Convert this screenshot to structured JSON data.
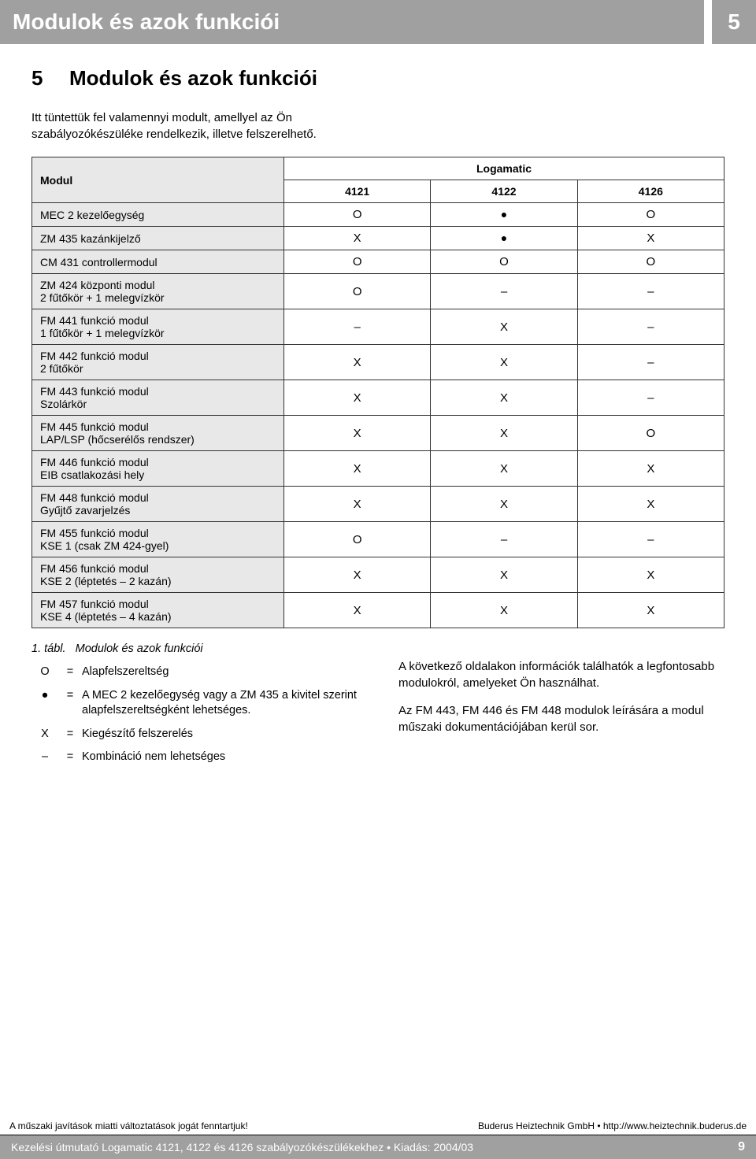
{
  "colors": {
    "bar_bg": "#a0a0a0",
    "bar_fg": "#ffffff",
    "row_shade": "#e8e8e8",
    "border": "#333333",
    "page_bg": "#ffffff",
    "text": "#000000"
  },
  "header": {
    "title": "Modulok és azok funkciói",
    "chapter_number": "5"
  },
  "section": {
    "number": "5",
    "title": "Modulok és azok funkciói"
  },
  "intro": "Itt tüntettük fel valamennyi modult, amellyel az Ön szabályozókészüléke rendelkezik, illetve felszerelhető.",
  "table": {
    "modul_label": "Modul",
    "group_label": "Logamatic",
    "columns": [
      "4121",
      "4122",
      "4126"
    ],
    "col_width_label": 320,
    "col_width_data": 178,
    "fontsize": 14,
    "header_bg": "#e8e8e8",
    "rows": [
      {
        "label": "MEC 2 kezelőegység",
        "cells": [
          "O",
          "●",
          "O"
        ]
      },
      {
        "label": "ZM 435 kazánkijelző",
        "cells": [
          "X",
          "●",
          "X"
        ]
      },
      {
        "label": "CM 431 controllermodul",
        "cells": [
          "O",
          "O",
          "O"
        ]
      },
      {
        "label": "ZM 424 központi modul\n2 fűtőkör + 1 melegvízkör",
        "cells": [
          "O",
          "–",
          "–"
        ]
      },
      {
        "label": "FM 441 funkció modul\n1 fűtőkör + 1 melegvízkör",
        "cells": [
          "–",
          "X",
          "–"
        ]
      },
      {
        "label": "FM 442 funkció modul\n2 fűtőkör",
        "cells": [
          "X",
          "X",
          "–"
        ]
      },
      {
        "label": "FM 443 funkció modul\nSzolárkör",
        "cells": [
          "X",
          "X",
          "–"
        ]
      },
      {
        "label": "FM 445 funkció modul\nLAP/LSP (hőcserélős rendszer)",
        "cells": [
          "X",
          "X",
          "O"
        ]
      },
      {
        "label": "FM 446 funkció modul\nEIB csatlakozási hely",
        "cells": [
          "X",
          "X",
          "X"
        ]
      },
      {
        "label": "FM 448 funkció modul\nGyűjtő zavarjelzés",
        "cells": [
          "X",
          "X",
          "X"
        ]
      },
      {
        "label": "FM 455 funkció modul\nKSE 1 (csak ZM 424-gyel)",
        "cells": [
          "O",
          "–",
          "–"
        ]
      },
      {
        "label": "FM 456 funkció modul\nKSE 2 (léptetés – 2 kazán)",
        "cells": [
          "X",
          "X",
          "X"
        ]
      },
      {
        "label": "FM 457 funkció modul\nKSE 4 (léptetés – 4 kazán)",
        "cells": [
          "X",
          "X",
          "X"
        ]
      }
    ]
  },
  "legend": {
    "caption_num": "1. tábl.",
    "caption_text": "Modulok és azok funkciói",
    "items": [
      {
        "symbol": "O",
        "text": "Alapfelszereltség"
      },
      {
        "symbol": "●",
        "text": "A MEC 2 kezelőegység vagy a ZM 435 a kivitel szerint alapfelszereltségként lehetséges."
      },
      {
        "symbol": "X",
        "text": "Kiegészítő felszerelés"
      },
      {
        "symbol": "–",
        "text": "Kombináció nem lehetséges"
      }
    ]
  },
  "side_text": {
    "p1": "A következő oldalakon információk találhatók a legfontosabb modulokról, amelyeket Ön használhat.",
    "p2": "Az FM 443, FM 446 és FM 448 modulok leírására a modul műszaki dokumentációjában kerül sor."
  },
  "footer": {
    "left": "A műszaki javítások miatti változtatások jogát fenntartjuk!",
    "right": "Buderus Heiztechnik GmbH • http://www.heiztechnik.buderus.de",
    "bar_text": "Kezelési útmutató Logamatic 4121, 4122 és 4126 szabályozókészülékekhez • Kiadás: 2004/03",
    "page": "9"
  }
}
